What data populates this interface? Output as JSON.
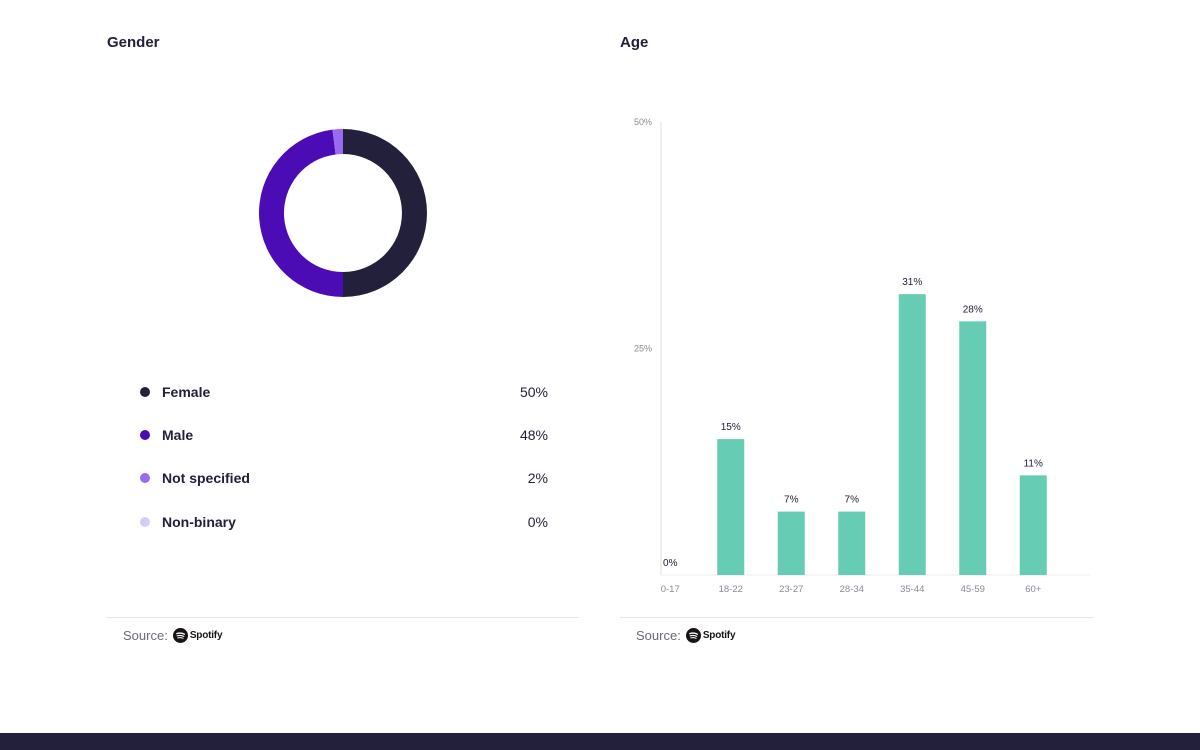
{
  "gender": {
    "title": "Gender",
    "source_label": "Source:",
    "source_brand": "Spotify",
    "legend": [
      {
        "label": "Female",
        "value_label": "50%",
        "color": "#22203a"
      },
      {
        "label": "Male",
        "value_label": "48%",
        "color": "#4b0cb6"
      },
      {
        "label": "Not specified",
        "value_label": "2%",
        "color": "#9a6af0"
      },
      {
        "label": "Non-binary",
        "value_label": "0%",
        "color": "#d6cbf7"
      }
    ]
  },
  "age": {
    "title": "Age",
    "source_label": "Source:",
    "source_brand": "Spotify"
  },
  "chart_data": [
    {
      "type": "pie",
      "title": "Gender",
      "categories": [
        "Female",
        "Male",
        "Not specified",
        "Non-binary"
      ],
      "values": [
        50,
        48,
        2,
        0
      ],
      "colors": [
        "#22203a",
        "#4b0cb6",
        "#9a6af0",
        "#d6cbf7"
      ],
      "donut": true
    },
    {
      "type": "bar",
      "title": "Age",
      "categories": [
        "0-17",
        "18-22",
        "23-27",
        "28-34",
        "35-44",
        "45-59",
        "60+"
      ],
      "values": [
        0,
        15,
        7,
        7,
        31,
        28,
        11
      ],
      "value_labels": [
        "0%",
        "15%",
        "7%",
        "7%",
        "31%",
        "28%",
        "11%"
      ],
      "yticks": [
        25,
        50
      ],
      "ytick_labels": [
        "25%",
        "50%"
      ],
      "ylim": [
        0,
        50
      ],
      "bar_color": "#66cdb4",
      "xlabel": "",
      "ylabel": ""
    }
  ]
}
